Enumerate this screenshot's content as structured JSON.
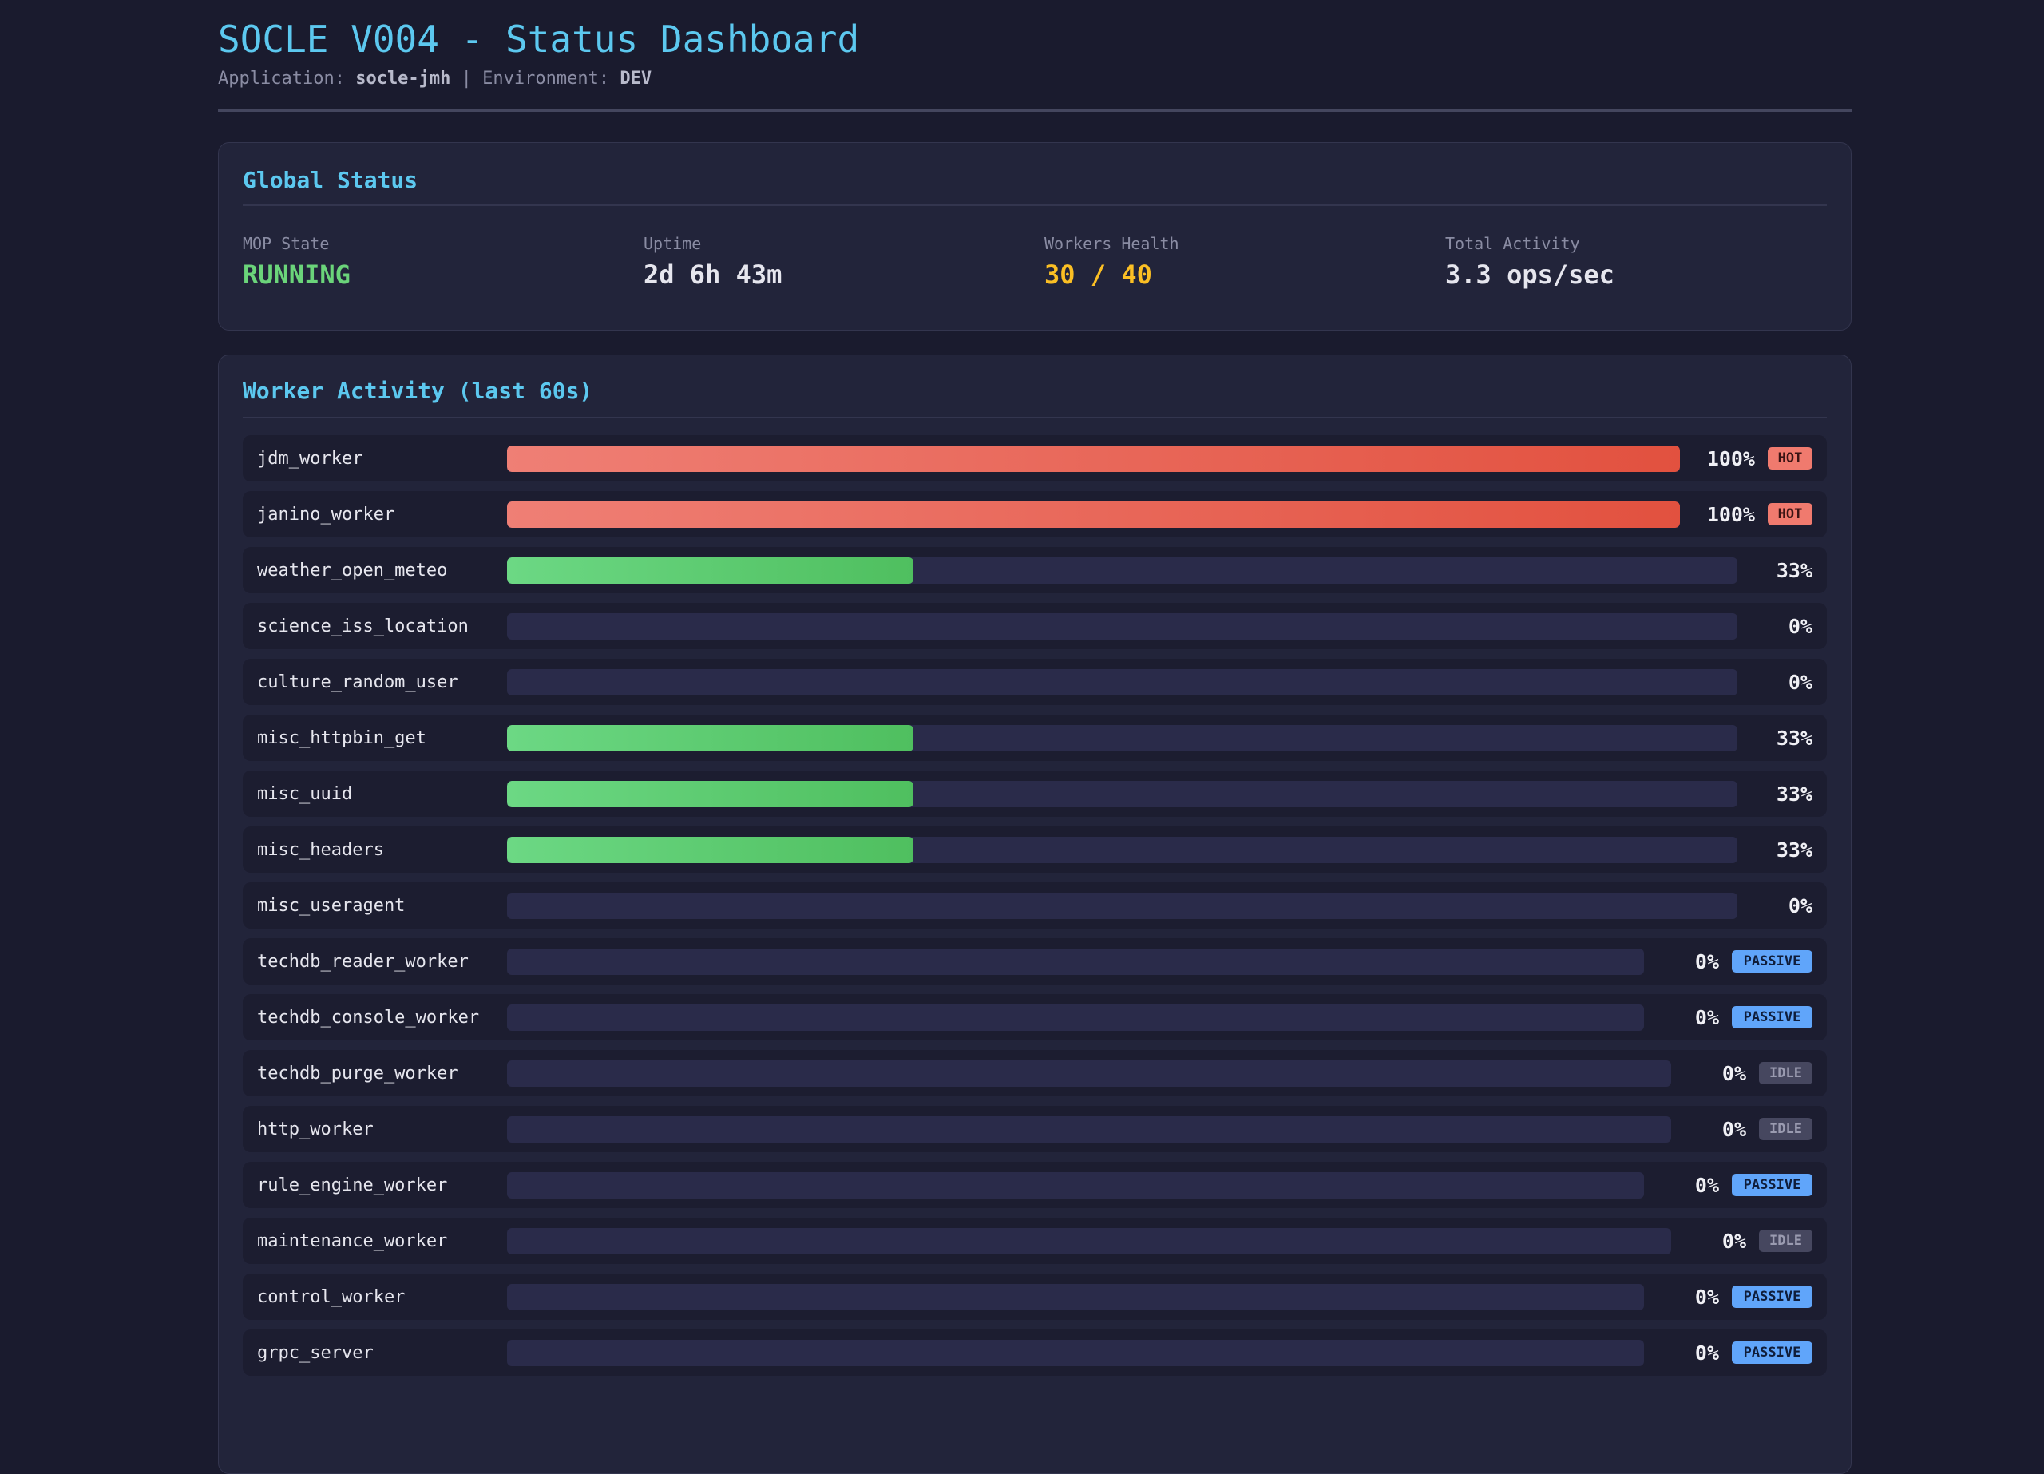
{
  "header": {
    "title": "SOCLE V004 - Status Dashboard",
    "app_label": "Application:",
    "app_value": "socle-jmh",
    "separator": "|",
    "env_label": "Environment:",
    "env_value": "DEV"
  },
  "global_status": {
    "title": "Global Status",
    "stats": [
      {
        "label": "MOP State",
        "value": "RUNNING",
        "color": "#6bd47a"
      },
      {
        "label": "Uptime",
        "value": "2d 6h 43m",
        "color": "#e6e6ee"
      },
      {
        "label": "Workers Health",
        "value": "30 / 40",
        "color": "#fbbf24"
      },
      {
        "label": "Total Activity",
        "value": "3.3 ops/sec",
        "color": "#e6e6ee"
      }
    ]
  },
  "worker_activity": {
    "title": "Worker Activity (last 60s)",
    "workers": [
      {
        "name": "jdm_worker",
        "percent": 100,
        "percent_label": "100%",
        "badge": "HOT"
      },
      {
        "name": "janino_worker",
        "percent": 100,
        "percent_label": "100%",
        "badge": "HOT"
      },
      {
        "name": "weather_open_meteo",
        "percent": 33,
        "percent_label": "33%",
        "badge": ""
      },
      {
        "name": "science_iss_location",
        "percent": 0,
        "percent_label": "0%",
        "badge": ""
      },
      {
        "name": "culture_random_user",
        "percent": 0,
        "percent_label": "0%",
        "badge": ""
      },
      {
        "name": "misc_httpbin_get",
        "percent": 33,
        "percent_label": "33%",
        "badge": ""
      },
      {
        "name": "misc_uuid",
        "percent": 33,
        "percent_label": "33%",
        "badge": ""
      },
      {
        "name": "misc_headers",
        "percent": 33,
        "percent_label": "33%",
        "badge": ""
      },
      {
        "name": "misc_useragent",
        "percent": 0,
        "percent_label": "0%",
        "badge": ""
      },
      {
        "name": "techdb_reader_worker",
        "percent": 0,
        "percent_label": "0%",
        "badge": "PASSIVE"
      },
      {
        "name": "techdb_console_worker",
        "percent": 0,
        "percent_label": "0%",
        "badge": "PASSIVE"
      },
      {
        "name": "techdb_purge_worker",
        "percent": 0,
        "percent_label": "0%",
        "badge": "IDLE"
      },
      {
        "name": "http_worker",
        "percent": 0,
        "percent_label": "0%",
        "badge": "IDLE"
      },
      {
        "name": "rule_engine_worker",
        "percent": 0,
        "percent_label": "0%",
        "badge": "PASSIVE"
      },
      {
        "name": "maintenance_worker",
        "percent": 0,
        "percent_label": "0%",
        "badge": "IDLE"
      },
      {
        "name": "control_worker",
        "percent": 0,
        "percent_label": "0%",
        "badge": "PASSIVE"
      },
      {
        "name": "grpc_server",
        "percent": 0,
        "percent_label": "0%",
        "badge": "PASSIVE"
      }
    ]
  }
}
